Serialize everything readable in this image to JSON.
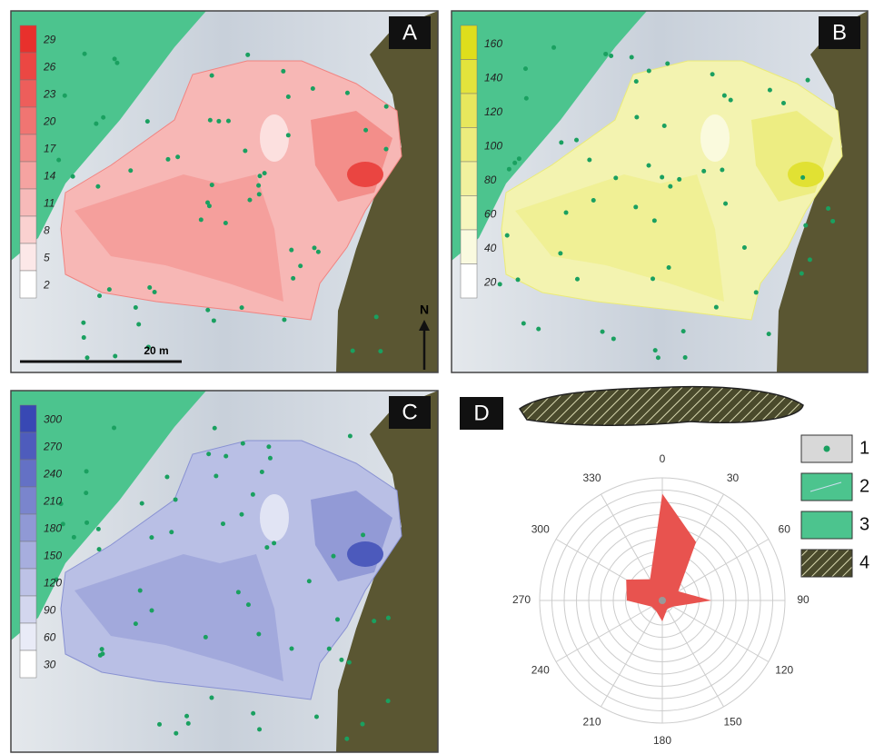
{
  "panels": [
    {
      "label": "A",
      "legend": [
        29,
        26,
        23,
        20,
        17,
        14,
        11,
        8,
        5,
        2
      ],
      "color": "#e8302c",
      "scale_bar": "20 m",
      "north": "N"
    },
    {
      "label": "B",
      "legend": [
        160,
        140,
        120,
        100,
        80,
        60,
        40,
        20
      ],
      "color": "#dede1c"
    },
    {
      "label": "C",
      "legend": [
        300,
        270,
        240,
        210,
        180,
        150,
        120,
        90,
        60,
        30
      ],
      "color": "#3848b4"
    }
  ],
  "panel_d_label": "D",
  "legend_items": [
    "1",
    "2",
    "3",
    "4"
  ],
  "chart_data": {
    "type": "rose",
    "categories": [
      "0",
      "30",
      "60",
      "90",
      "120",
      "150",
      "180",
      "210",
      "240",
      "270",
      "300",
      "330"
    ],
    "values": [
      8.7,
      5.5,
      1.5,
      4,
      1,
      0.8,
      1.7,
      1,
      1,
      2.9,
      3.4,
      2
    ],
    "color": "#e8534f",
    "rlim": [
      0,
      10
    ],
    "rticks": [
      1,
      2,
      3,
      4,
      5,
      6,
      7,
      8,
      9,
      10
    ]
  }
}
